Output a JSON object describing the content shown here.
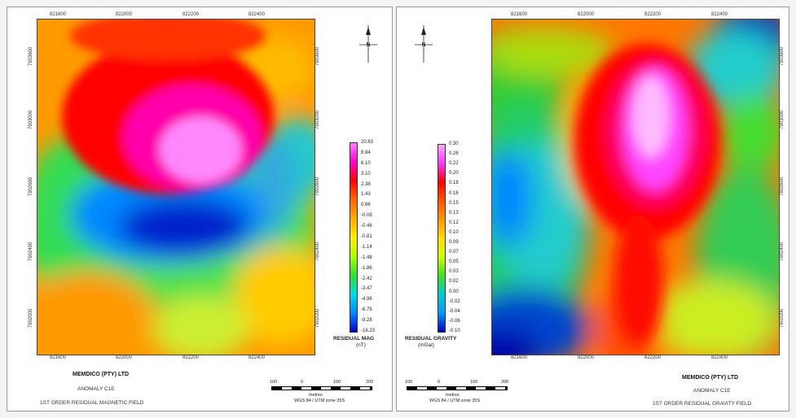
{
  "left_panel": {
    "company": "MEMDICO (PTY) LTD",
    "anomaly": "ANOMALY C1E",
    "field_title": "1ST ORDER RESIDUAL MAGNETIC FIELD",
    "legend_title": "RESIDUAL MAG",
    "legend_unit": "(nT)",
    "legend_values": [
      "20.63",
      "8.84",
      "6.10",
      "3.10",
      "2.38",
      "1.43",
      "0.66",
      "-0.08",
      "-0.46",
      "-0.81",
      "-1.14",
      "-1.48",
      "-1.86",
      "-2.42",
      "-3.47",
      "-4.96",
      "-6.79",
      "-9.28",
      "-16.23"
    ],
    "x_ticks": [
      "821600",
      "822000",
      "822200",
      "822400"
    ],
    "y_ticks": [
      "7903600",
      "7903000",
      "7902600",
      "7902400",
      "7902000"
    ]
  },
  "right_panel": {
    "company": "MEMDICO (PTY) LTD",
    "anomaly": "ANOMALY C1E",
    "field_title": "1ST ORDER RESIDUAL GRAVITY FIELD",
    "legend_title": "RESIDUAL GRAVITY",
    "legend_unit": "(mGal)",
    "legend_values": [
      "0.30",
      "0.26",
      "0.22",
      "0.20",
      "0.18",
      "0.16",
      "0.15",
      "0.13",
      "0.12",
      "0.10",
      "0.09",
      "0.07",
      "0.05",
      "0.03",
      "0.02",
      "0.00",
      "-0.02",
      "-0.04",
      "-0.06",
      "-0.10"
    ],
    "x_ticks": [
      "821600",
      "822000",
      "822200",
      "822400"
    ],
    "y_ticks": [
      "7903600",
      "7903000",
      "7902600",
      "7902400",
      "7902000"
    ]
  },
  "scale_bar": {
    "labels": [
      "100",
      "0",
      "100",
      "200"
    ],
    "unit": "metres",
    "projection": "WGS 84 / UTM zone 35S"
  },
  "north_arrow": {
    "letter": "N"
  },
  "colors": {
    "mag_ramp": [
      "#ff80ff",
      "#ff00cc",
      "#ff0000",
      "#ff6600",
      "#ffaa00",
      "#ffee00",
      "#aaff00",
      "#33dd33",
      "#00dddd",
      "#0088ff",
      "#0000cc"
    ],
    "grav_ramp": [
      "#ffaaff",
      "#ff33ff",
      "#ff0000",
      "#ff5500",
      "#ff9900",
      "#ffdd00",
      "#ccff00",
      "#44dd22",
      "#00cccc",
      "#0099ff",
      "#0000bb"
    ]
  }
}
